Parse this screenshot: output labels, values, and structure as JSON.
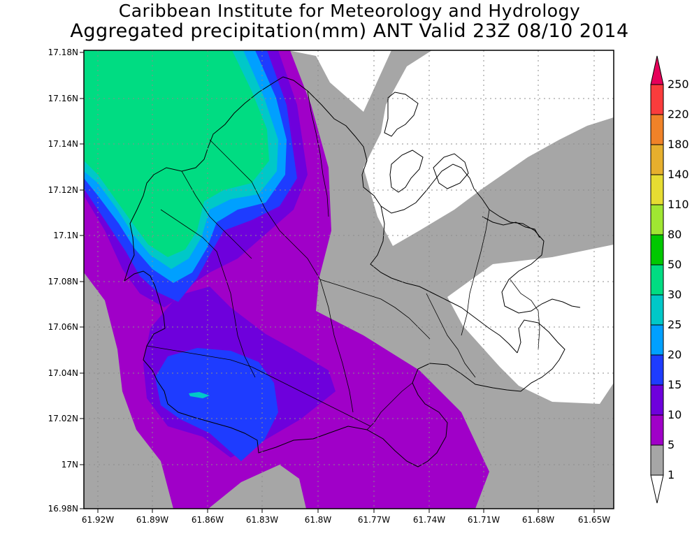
{
  "title": {
    "line1": "Caribbean Institute for Meteorology and Hydrology",
    "line2": "Aggregated precipitation(mm) ANT Valid 23Z 08/10 2014"
  },
  "axes": {
    "lat_ticks": [
      "17.18N",
      "17.16N",
      "17.14N",
      "17.12N",
      "17.1N",
      "17.08N",
      "17.06N",
      "17.04N",
      "17.02N",
      "17N",
      "16.98N"
    ],
    "lon_ticks": [
      "61.92W",
      "61.89W",
      "61.86W",
      "61.83W",
      "61.8W",
      "61.77W",
      "61.74W",
      "61.71W",
      "61.68W",
      "61.65W"
    ],
    "lat_range": [
      16.98,
      17.18
    ],
    "lon_range": [
      -61.935,
      -61.645
    ],
    "grid": true
  },
  "colorbar": {
    "levels": [
      "1",
      "5",
      "10",
      "15",
      "20",
      "25",
      "30",
      "50",
      "80",
      "110",
      "140",
      "180",
      "220",
      "250"
    ],
    "colors": [
      "#ffffff",
      "#a6a6a6",
      "#a000c8",
      "#6e00dc",
      "#1e3cff",
      "#00a0ff",
      "#00c8c8",
      "#00dc82",
      "#00c800",
      "#a0e632",
      "#e6dc32",
      "#e6af2d",
      "#f08228",
      "#fa3c3c",
      "#e6005a"
    ]
  },
  "fields": {
    "gray": "#a6a6a6",
    "purple": "#a000c8",
    "violet": "#6e00dc",
    "blue": "#1e3cff",
    "skyblue": "#00a0ff",
    "cyan": "#00c8c8",
    "green": "#00dc82"
  }
}
